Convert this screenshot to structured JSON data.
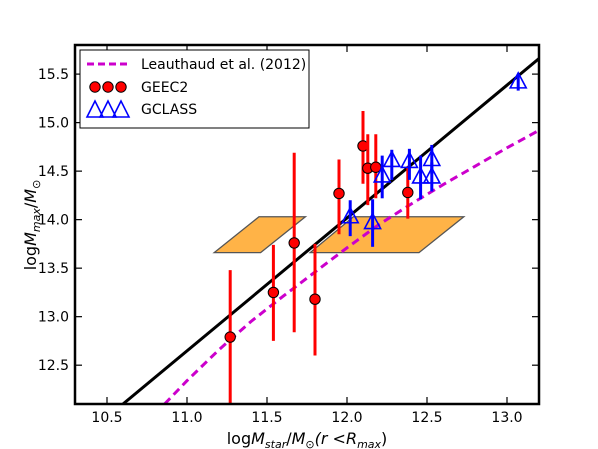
{
  "chart_data": {
    "type": "scatter",
    "xlim": [
      10.3,
      13.2
    ],
    "ylim": [
      12.1,
      15.8
    ],
    "xticks": [
      "10.5",
      "11.0",
      "11.5",
      "12.0",
      "12.5",
      "13.0"
    ],
    "yticks": [
      "12.5",
      "13.0",
      "13.5",
      "14.0",
      "14.5",
      "15.0",
      "15.5"
    ],
    "xlabel": {
      "main": "log",
      "m": "M",
      "sub": "star",
      "div": "/",
      "m2": "M",
      "sun": "⊙",
      "tail": "(r <",
      "r": "R",
      "rsub": "max",
      "close": ")"
    },
    "ylabel": {
      "main": "log",
      "m": "M",
      "sub": "max",
      "div": "/",
      "m2": "M",
      "sun": "⊙"
    },
    "legend": {
      "position": "top-left",
      "entries": [
        "Leauthaud et al. (2012)",
        "GEEC2",
        "GCLASS"
      ]
    },
    "fit_line": {
      "x": [
        10.6,
        13.2
      ],
      "y": [
        12.1,
        15.66
      ],
      "color": "#000000"
    },
    "leauthaud_curve": {
      "color": "#cc00cc",
      "x": [
        10.86,
        11.0,
        11.2,
        11.4,
        11.6,
        11.8,
        12.0,
        12.2,
        12.4,
        12.6,
        12.8,
        13.0,
        13.2
      ],
      "y": [
        12.1,
        12.34,
        12.66,
        12.95,
        13.21,
        13.46,
        13.71,
        13.95,
        14.16,
        14.36,
        14.55,
        14.74,
        14.92
      ]
    },
    "regions": [
      {
        "x": [
          11.17,
          11.45,
          11.74,
          11.46
        ],
        "y": [
          13.66,
          14.03,
          14.03,
          13.66
        ],
        "color": "#ffb347"
      },
      {
        "x": [
          11.77,
          12.04,
          12.73,
          12.45
        ],
        "y": [
          13.66,
          14.03,
          14.03,
          13.66
        ],
        "color": "#ffb347"
      }
    ],
    "series": [
      {
        "name": "GEEC2",
        "color": "#ff0000",
        "marker": "circle",
        "points": [
          {
            "x": 11.27,
            "y": 12.79,
            "lo": 12.06,
            "hi": 13.48
          },
          {
            "x": 11.54,
            "y": 13.25,
            "lo": 12.75,
            "hi": 13.74
          },
          {
            "x": 11.67,
            "y": 13.76,
            "lo": 12.84,
            "hi": 14.69
          },
          {
            "x": 11.8,
            "y": 13.18,
            "lo": 12.6,
            "hi": 13.75
          },
          {
            "x": 11.95,
            "y": 14.27,
            "lo": 13.85,
            "hi": 14.62
          },
          {
            "x": 12.1,
            "y": 14.76,
            "lo": 14.37,
            "hi": 15.12
          },
          {
            "x": 12.13,
            "y": 14.53,
            "lo": 14.15,
            "hi": 14.88
          },
          {
            "x": 12.18,
            "y": 14.54,
            "lo": 14.22,
            "hi": 14.88
          },
          {
            "x": 12.38,
            "y": 14.28,
            "lo": 14.01,
            "hi": 14.55
          }
        ]
      },
      {
        "name": "GCLASS",
        "color": "#0000ff",
        "marker": "triangle",
        "points": [
          {
            "x": 12.02,
            "y": 14.03,
            "lo": 13.83,
            "hi": 14.2
          },
          {
            "x": 12.16,
            "y": 13.97,
            "lo": 13.72,
            "hi": 14.21
          },
          {
            "x": 12.22,
            "y": 14.45,
            "lo": 14.22,
            "hi": 14.66
          },
          {
            "x": 12.28,
            "y": 14.61,
            "lo": 14.41,
            "hi": 14.72
          },
          {
            "x": 12.39,
            "y": 14.6,
            "lo": 14.41,
            "hi": 14.73
          },
          {
            "x": 12.46,
            "y": 14.44,
            "lo": 14.21,
            "hi": 14.66
          },
          {
            "x": 12.53,
            "y": 14.62,
            "lo": 14.47,
            "hi": 14.77
          },
          {
            "x": 12.53,
            "y": 14.44,
            "lo": 14.29,
            "hi": 14.59
          },
          {
            "x": 13.07,
            "y": 15.42,
            "lo": 15.33,
            "hi": 15.5
          }
        ]
      }
    ]
  }
}
